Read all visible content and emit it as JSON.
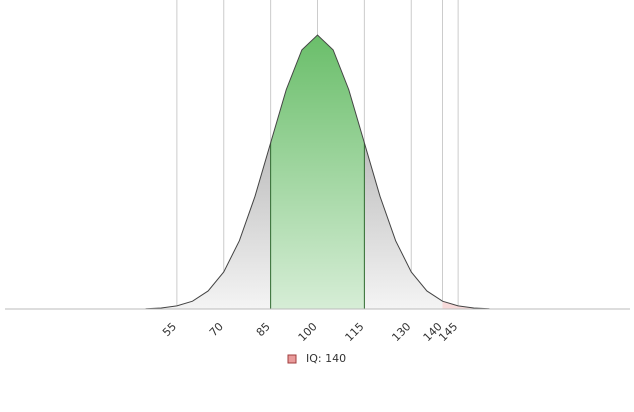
{
  "chart_data": {
    "type": "area",
    "x": [
      45,
      50,
      55,
      60,
      65,
      70,
      75,
      80,
      85,
      90,
      95,
      100,
      105,
      110,
      115,
      120,
      125,
      130,
      135,
      140,
      145,
      150,
      155
    ],
    "values": [
      3e-05,
      0.0001,
      0.0003,
      0.00076,
      0.00175,
      0.0036,
      0.00663,
      0.01094,
      0.01613,
      0.0213,
      0.02516,
      0.0266,
      0.02516,
      0.0213,
      0.01613,
      0.01094,
      0.00663,
      0.0036,
      0.00175,
      0.00076,
      0.0003,
      0.0001,
      3e-05
    ],
    "color": "#444444",
    "highlights": [
      {
        "from": 85,
        "to": 115,
        "color": "#5cb85c"
      },
      {
        "name": "IQ: 140",
        "from": 140,
        "to": 155,
        "color": "#e07070"
      }
    ],
    "xlim": [
      0,
      200
    ],
    "ylim": [
      0,
      0.03
    ],
    "xticks": [
      55,
      70,
      85,
      100,
      115,
      130,
      140,
      145
    ],
    "grid": true
  }
}
